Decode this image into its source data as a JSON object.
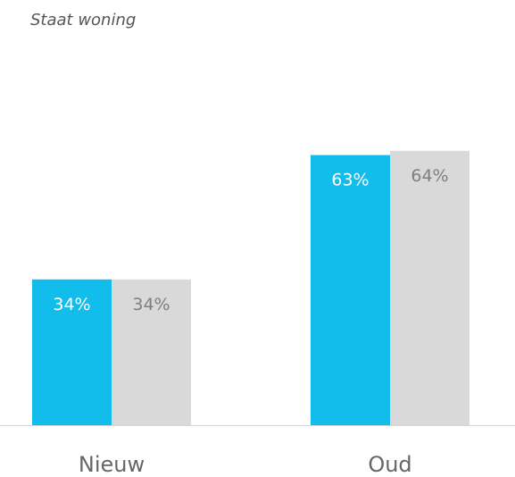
{
  "chart_data": {
    "type": "bar",
    "title": "Staat woning",
    "categories": [
      "Nieuw",
      "Oud"
    ],
    "series": [
      {
        "values": [
          34,
          63
        ],
        "labels": [
          "34%",
          "63%"
        ],
        "color": "#12bdec",
        "label_color": "#ffffff"
      },
      {
        "values": [
          34,
          64
        ],
        "labels": [
          "34%",
          "64%"
        ],
        "color": "#d9d9d9",
        "label_color": "#7f7f7f"
      }
    ],
    "ylim": [
      0,
      100
    ],
    "grid": false,
    "legend": "none",
    "axis_color": "#d9d9d9"
  }
}
